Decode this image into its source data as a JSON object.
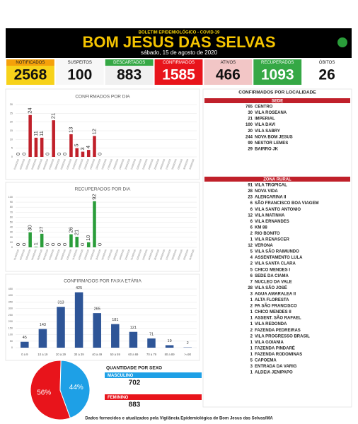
{
  "header": {
    "subtitle": "BOLETIM EPIDEMIOLÓGICO - COVID-19",
    "title": "BOM JESUS DAS SELVAS",
    "date": "sábado, 15 de agosto de 2020"
  },
  "stats": [
    {
      "label": "NOTIFICADOS",
      "value": "2568"
    },
    {
      "label": "SUSPEITOS",
      "value": "100"
    },
    {
      "label": "DESCARTADOS",
      "value": "883"
    },
    {
      "label": "CONFIRMADOS",
      "value": "1585"
    },
    {
      "label": "ATIVOS",
      "value": "466"
    },
    {
      "label": "RECUPERADOS",
      "value": "1093"
    },
    {
      "label": "ÓBITOS",
      "value": "26"
    }
  ],
  "chart_data": [
    {
      "type": "bar",
      "title": "CONFIRMADOS POR DIA",
      "color": "#c0202a",
      "categories": [
        "01/08/2020",
        "02/08/2020",
        "03/08/2020",
        "04/08/2020",
        "05/08/2020",
        "06/08/2020",
        "07/08/2020",
        "08/08/2020",
        "09/08/2020",
        "10/08/2020",
        "11/08/2020",
        "12/08/2020",
        "13/08/2020",
        "14/08/2020",
        "15/08/2020",
        "16/08/2020",
        "17/08/2020",
        "18/08/2020",
        "19/08/2020",
        "20/08/2020",
        "21/08/2020",
        "22/08/2020",
        "23/08/2020",
        "24/08/2020",
        "25/08/2020",
        "26/08/2020",
        "27/08/2020",
        "28/08/2020",
        "29/08/2020",
        "30/08/2020",
        "31/08/2020"
      ],
      "values": [
        0,
        0,
        24,
        11,
        11,
        0,
        21,
        0,
        0,
        13,
        5,
        3,
        4,
        12,
        0,
        null,
        null,
        null,
        null,
        null,
        null,
        null,
        null,
        null,
        null,
        null,
        null,
        null,
        null,
        null,
        null
      ],
      "ylim": [
        0,
        30
      ],
      "yticks": [
        0,
        5,
        10,
        15,
        20,
        25,
        30
      ],
      "grid": true
    },
    {
      "type": "bar",
      "title": "RECUPERADOS POR DIA",
      "color": "#2a9d3a",
      "categories": [
        "01/08/2020",
        "02/08/2020",
        "03/08/2020",
        "04/08/2020",
        "05/08/2020",
        "06/08/2020",
        "07/08/2020",
        "08/08/2020",
        "09/08/2020",
        "10/08/2020",
        "11/08/2020",
        "12/08/2020",
        "13/08/2020",
        "14/08/2020",
        "15/08/2020",
        "16/08/2020",
        "17/08/2020",
        "18/08/2020",
        "19/08/2020",
        "20/08/2020",
        "21/08/2020",
        "22/08/2020",
        "23/08/2020",
        "24/08/2020",
        "25/08/2020",
        "26/08/2020",
        "27/08/2020",
        "28/08/2020",
        "29/08/2020",
        "30/08/2020",
        "31/08/2020"
      ],
      "values": [
        0,
        0,
        30,
        1,
        27,
        0,
        0,
        0,
        0,
        26,
        21,
        0,
        10,
        92,
        0,
        null,
        null,
        null,
        null,
        null,
        null,
        null,
        null,
        null,
        null,
        null,
        null,
        null,
        null,
        null,
        null
      ],
      "ylim": [
        0,
        100
      ],
      "yticks": [
        0,
        10,
        20,
        30,
        40,
        50,
        60,
        70,
        80,
        90,
        100
      ],
      "grid": true
    },
    {
      "type": "bar",
      "title": "CONFIRMADOS POR FAIXA ETÁRIA",
      "color": "#2e5597",
      "categories": [
        "0 a 9",
        "10 a 19",
        "20 a 29",
        "30 a 39",
        "40 a 49",
        "50 a 59",
        "60 a 69",
        "70 a 79",
        "80 a 89",
        ">=90"
      ],
      "values": [
        45,
        143,
        313,
        425,
        265,
        181,
        121,
        71,
        19,
        2
      ],
      "ylim": [
        0,
        450
      ],
      "yticks": [
        0,
        50,
        100,
        150,
        200,
        250,
        300,
        350,
        400,
        450
      ],
      "grid": true
    },
    {
      "type": "pie",
      "values": [
        56,
        44
      ],
      "value_labels": [
        "56%",
        "44%"
      ],
      "colors": [
        "#e8141b",
        "#1ea0e6"
      ]
    }
  ],
  "sex": {
    "title": "QUANTIDADE POR SEXO",
    "items": [
      {
        "label": "MASCULINO",
        "value": "702"
      },
      {
        "label": "FEMININO",
        "value": "883"
      }
    ]
  },
  "localidade": {
    "title": "CONFIRMADOS POR LOCALIDADE",
    "groups": [
      {
        "name": "SEDE",
        "rows": [
          {
            "count": "765",
            "name": "CENTRO"
          },
          {
            "count": "30",
            "name": "VILA ROSEANA"
          },
          {
            "count": "21",
            "name": "IMPERIAL"
          },
          {
            "count": "100",
            "name": "VILA DAVI"
          },
          {
            "count": "20",
            "name": "VILA SABRY"
          },
          {
            "count": "244",
            "name": "NOVA BOM JESUS"
          },
          {
            "count": "99",
            "name": "NESTOR LEMES"
          },
          {
            "count": "29",
            "name": "BAIRRO JK"
          }
        ]
      },
      {
        "name": "ZONA RURAL",
        "rows": [
          {
            "count": "91",
            "name": "VILA TROPICAL"
          },
          {
            "count": "28",
            "name": "NOVA VIDA"
          },
          {
            "count": "23",
            "name": "ALENCARINA II"
          },
          {
            "count": "6",
            "name": "SÃO FRANCISCO BOA VIAGEM"
          },
          {
            "count": "6",
            "name": "VILA SANTO ANTONIO"
          },
          {
            "count": "12",
            "name": "VILA MATINHA"
          },
          {
            "count": "6",
            "name": "VILA ERNANDES"
          },
          {
            "count": "6",
            "name": "KM 88"
          },
          {
            "count": "2",
            "name": "RIO BONITO"
          },
          {
            "count": "1",
            "name": "VILA RENASCER"
          },
          {
            "count": "12",
            "name": "VERONA"
          },
          {
            "count": "5",
            "name": "VILA SÃO RAIMUNDO"
          },
          {
            "count": "4",
            "name": "ASSENTAMENTO LULA"
          },
          {
            "count": "2",
            "name": "VILA SANTA CLARA"
          },
          {
            "count": "5",
            "name": "CHICO MENDES I"
          },
          {
            "count": "6",
            "name": "SEDE DA CIAMA"
          },
          {
            "count": "7",
            "name": "NUCLEO DA VALE"
          },
          {
            "count": "28",
            "name": "VILA SÃO JOSÉ"
          },
          {
            "count": "3",
            "name": "AGUA AMARALEA II"
          },
          {
            "count": "1",
            "name": "ALTA FLORESTA"
          },
          {
            "count": "2",
            "name": "PA SÃO FRANCISCO"
          },
          {
            "count": "1",
            "name": "CHICO MENDES II"
          },
          {
            "count": "1",
            "name": "ASSENT. SÃO RAFAEL"
          },
          {
            "count": "1",
            "name": "VILA REDONDA"
          },
          {
            "count": "2",
            "name": "FAZENDA PEDREIRAS"
          },
          {
            "count": "2",
            "name": "VILA PROGRESSO BRASIL"
          },
          {
            "count": "1",
            "name": "VILA GOIANIA"
          },
          {
            "count": "1",
            "name": "FAZENDA PINDARÉ"
          },
          {
            "count": "1",
            "name": "FAZENDA RODOMINAS"
          },
          {
            "count": "5",
            "name": "CAPOEMA"
          },
          {
            "count": "3",
            "name": "ENTRADA DA VARIG"
          },
          {
            "count": "1",
            "name": "ALDEIA JENIPAPO"
          }
        ]
      }
    ]
  },
  "footer": "Dados fornecidos e atualizados pela Vigilância Epidemiológica de Bom Jesus das Selvas/MA"
}
